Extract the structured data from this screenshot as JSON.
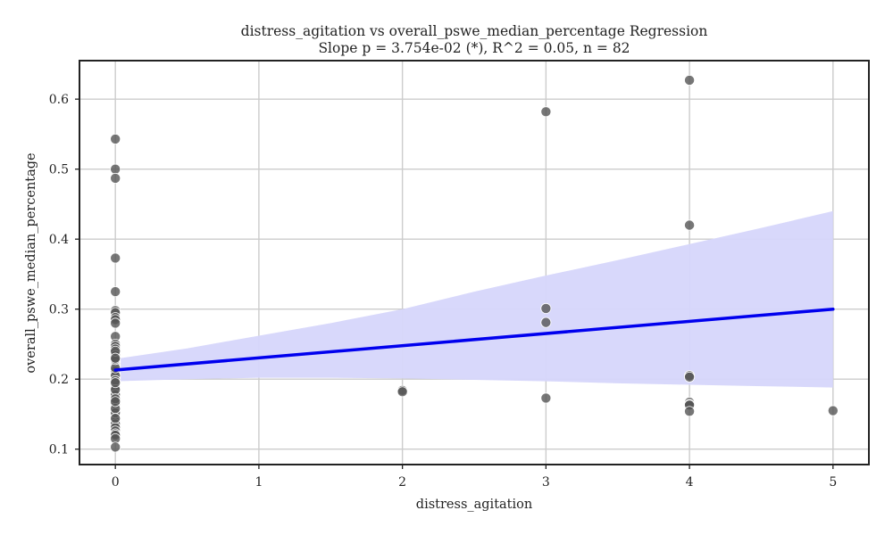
{
  "chart_data": {
    "type": "scatter",
    "title": "distress_agitation vs overall_pswe_median_percentage Regression",
    "subtitle": "Slope p = 3.754e-02 (*), R^2 = 0.05, n = 82",
    "xlabel": "distress_agitation",
    "ylabel": "overall_pswe_median_percentage",
    "xlim": [
      -0.25,
      5.25
    ],
    "ylim": [
      0.078,
      0.655
    ],
    "x_ticks": [
      0,
      1,
      2,
      3,
      4,
      5
    ],
    "y_ticks": [
      0.1,
      0.2,
      0.3,
      0.4,
      0.5,
      0.6
    ],
    "grid": true,
    "points_color": "#555555",
    "regression_color": "#0000ee",
    "band_color": "#d6d6fb",
    "points": [
      {
        "x": 0,
        "y": 0.543
      },
      {
        "x": 0,
        "y": 0.5
      },
      {
        "x": 0,
        "y": 0.487
      },
      {
        "x": 0,
        "y": 0.373
      },
      {
        "x": 0,
        "y": 0.325
      },
      {
        "x": 0,
        "y": 0.298
      },
      {
        "x": 0,
        "y": 0.295
      },
      {
        "x": 0,
        "y": 0.288
      },
      {
        "x": 0,
        "y": 0.285
      },
      {
        "x": 0,
        "y": 0.28
      },
      {
        "x": 0,
        "y": 0.261
      },
      {
        "x": 0,
        "y": 0.25
      },
      {
        "x": 0,
        "y": 0.247
      },
      {
        "x": 0,
        "y": 0.243
      },
      {
        "x": 0,
        "y": 0.238
      },
      {
        "x": 0,
        "y": 0.234
      },
      {
        "x": 0,
        "y": 0.225
      },
      {
        "x": 0,
        "y": 0.221
      },
      {
        "x": 0,
        "y": 0.218
      },
      {
        "x": 0,
        "y": 0.214
      },
      {
        "x": 0,
        "y": 0.21
      },
      {
        "x": 0,
        "y": 0.207
      },
      {
        "x": 0,
        "y": 0.203
      },
      {
        "x": 0,
        "y": 0.2
      },
      {
        "x": 0,
        "y": 0.196
      },
      {
        "x": 0,
        "y": 0.193
      },
      {
        "x": 0,
        "y": 0.19
      },
      {
        "x": 0,
        "y": 0.186
      },
      {
        "x": 0,
        "y": 0.183
      },
      {
        "x": 0,
        "y": 0.18
      },
      {
        "x": 0,
        "y": 0.176
      },
      {
        "x": 0,
        "y": 0.173
      },
      {
        "x": 0,
        "y": 0.17
      },
      {
        "x": 0,
        "y": 0.167
      },
      {
        "x": 0,
        "y": 0.163
      },
      {
        "x": 0,
        "y": 0.16
      },
      {
        "x": 0,
        "y": 0.157
      },
      {
        "x": 0,
        "y": 0.154
      },
      {
        "x": 0,
        "y": 0.151
      },
      {
        "x": 0,
        "y": 0.148
      },
      {
        "x": 0,
        "y": 0.145
      },
      {
        "x": 0,
        "y": 0.142
      },
      {
        "x": 0,
        "y": 0.139
      },
      {
        "x": 0,
        "y": 0.136
      },
      {
        "x": 0,
        "y": 0.131
      },
      {
        "x": 0,
        "y": 0.126
      },
      {
        "x": 0,
        "y": 0.122
      },
      {
        "x": 0,
        "y": 0.12
      },
      {
        "x": 0,
        "y": 0.115
      },
      {
        "x": 0,
        "y": 0.103
      },
      {
        "x": 0,
        "y": 0.212
      },
      {
        "x": 0,
        "y": 0.188
      },
      {
        "x": 0,
        "y": 0.178
      },
      {
        "x": 0,
        "y": 0.165
      },
      {
        "x": 0,
        "y": 0.152
      },
      {
        "x": 0,
        "y": 0.205
      },
      {
        "x": 0,
        "y": 0.198
      },
      {
        "x": 0,
        "y": 0.185
      },
      {
        "x": 0,
        "y": 0.172
      },
      {
        "x": 0,
        "y": 0.158
      },
      {
        "x": 0,
        "y": 0.144
      },
      {
        "x": 0,
        "y": 0.216
      },
      {
        "x": 0,
        "y": 0.228
      },
      {
        "x": 0,
        "y": 0.195
      },
      {
        "x": 0,
        "y": 0.168
      },
      {
        "x": 2,
        "y": 0.184
      },
      {
        "x": 2,
        "y": 0.182
      },
      {
        "x": 3,
        "y": 0.582
      },
      {
        "x": 3,
        "y": 0.301
      },
      {
        "x": 3,
        "y": 0.281
      },
      {
        "x": 3,
        "y": 0.173
      },
      {
        "x": 4,
        "y": 0.627
      },
      {
        "x": 4,
        "y": 0.42
      },
      {
        "x": 4,
        "y": 0.205
      },
      {
        "x": 4,
        "y": 0.203
      },
      {
        "x": 4,
        "y": 0.167
      },
      {
        "x": 4,
        "y": 0.164
      },
      {
        "x": 4,
        "y": 0.163
      },
      {
        "x": 4,
        "y": 0.154
      },
      {
        "x": 5,
        "y": 0.155
      },
      {
        "x": 0,
        "y": 0.24
      },
      {
        "x": 0,
        "y": 0.23
      }
    ],
    "regression_line": {
      "x": [
        0,
        5
      ],
      "y": [
        0.213,
        0.3
      ]
    },
    "confidence_band": {
      "x": [
        0,
        0.5,
        1,
        1.5,
        2,
        2.5,
        3,
        3.5,
        4,
        4.5,
        5
      ],
      "lower": [
        0.197,
        0.2,
        0.202,
        0.202,
        0.201,
        0.199,
        0.197,
        0.194,
        0.192,
        0.19,
        0.188
      ],
      "upper": [
        0.229,
        0.244,
        0.262,
        0.28,
        0.3,
        0.325,
        0.348,
        0.37,
        0.393,
        0.416,
        0.44
      ]
    }
  }
}
